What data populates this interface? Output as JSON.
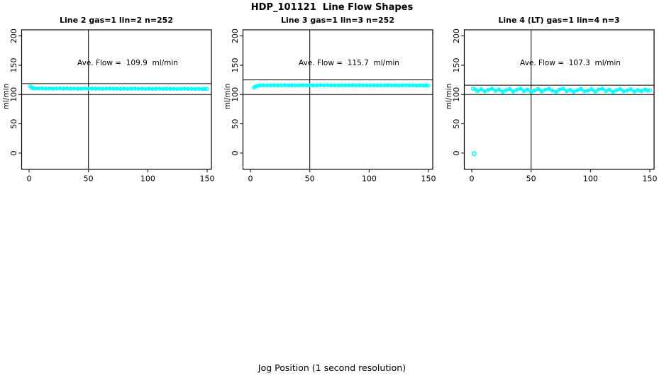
{
  "title": "HDP_101121  Line Flow Shapes",
  "xlabel": "Jog Position (1 second resolution)",
  "marker_color": "#00FFFF",
  "axis_color": "#000000",
  "background_color": "#FFFFFF",
  "chart_data": [
    {
      "type": "scatter",
      "title": "Line 2 gas=1 lin=2 n=252",
      "annotation": "Ave. Flow =  109.9  ml/min",
      "ave_flow_ml_min": 109.9,
      "n": 252,
      "ylabel": "ml/min",
      "xticks": [
        0,
        50,
        100,
        150
      ],
      "yticks": [
        0,
        50,
        100,
        150,
        200
      ],
      "xlim": [
        -6.3,
        153.6
      ],
      "ylim": [
        -27.4,
        210.5
      ],
      "grid": false,
      "vline_x": 50,
      "hlines": [
        118.7,
        100.0
      ],
      "points": [
        [
          1,
          113.8
        ],
        [
          2,
          112.0
        ],
        [
          3,
          111.0
        ],
        [
          5,
          110.4
        ],
        [
          8,
          110.3
        ],
        [
          11,
          110.5
        ],
        [
          14,
          110.2
        ],
        [
          17,
          110.4
        ],
        [
          20,
          110.1
        ],
        [
          23,
          110.3
        ],
        [
          26,
          110.5
        ],
        [
          29,
          110.2
        ],
        [
          32,
          110.4
        ],
        [
          35,
          110.1
        ],
        [
          38,
          110.3
        ],
        [
          41,
          110.0
        ],
        [
          44,
          110.2
        ],
        [
          47,
          110.4
        ],
        [
          50,
          110.1
        ],
        [
          53,
          110.3
        ],
        [
          56,
          110.0
        ],
        [
          59,
          110.2
        ],
        [
          62,
          109.9
        ],
        [
          65,
          110.1
        ],
        [
          68,
          110.3
        ],
        [
          71,
          110.0
        ],
        [
          74,
          110.2
        ],
        [
          77,
          109.9
        ],
        [
          80,
          110.1
        ],
        [
          83,
          109.8
        ],
        [
          86,
          110.0
        ],
        [
          89,
          110.2
        ],
        [
          92,
          109.9
        ],
        [
          95,
          110.1
        ],
        [
          98,
          109.8
        ],
        [
          101,
          110.0
        ],
        [
          104,
          109.7
        ],
        [
          107,
          109.9
        ],
        [
          110,
          110.1
        ],
        [
          113,
          109.8
        ],
        [
          116,
          110.0
        ],
        [
          119,
          109.7
        ],
        [
          122,
          109.9
        ],
        [
          125,
          109.6
        ],
        [
          128,
          109.8
        ],
        [
          131,
          110.0
        ],
        [
          134,
          109.7
        ],
        [
          137,
          109.9
        ],
        [
          140,
          109.6
        ],
        [
          143,
          109.8
        ],
        [
          146,
          109.5
        ],
        [
          148,
          109.7
        ],
        [
          150,
          109.6
        ]
      ],
      "outliers": []
    },
    {
      "type": "scatter",
      "title": "Line 3 gas=1 lin=3 n=252",
      "annotation": "Ave. Flow =  115.7  ml/min",
      "ave_flow_ml_min": 115.7,
      "n": 252,
      "ylabel": "ml/min",
      "xticks": [
        0,
        50,
        100,
        150
      ],
      "yticks": [
        0,
        50,
        100,
        150,
        200
      ],
      "xlim": [
        -6.3,
        153.6
      ],
      "ylim": [
        -27.4,
        210.5
      ],
      "grid": false,
      "vline_x": 50,
      "hlines": [
        125.0,
        100.0
      ],
      "points": [
        [
          3,
          111.8
        ],
        [
          4,
          113.2
        ],
        [
          5,
          114.2
        ],
        [
          6,
          114.9
        ],
        [
          8,
          115.4
        ],
        [
          11,
          115.6
        ],
        [
          14,
          115.8
        ],
        [
          17,
          115.7
        ],
        [
          20,
          115.9
        ],
        [
          23,
          115.6
        ],
        [
          26,
          115.8
        ],
        [
          29,
          116.0
        ],
        [
          32,
          115.7
        ],
        [
          35,
          115.9
        ],
        [
          38,
          115.6
        ],
        [
          41,
          115.8
        ],
        [
          44,
          116.0
        ],
        [
          47,
          115.7
        ],
        [
          50,
          115.9
        ],
        [
          53,
          115.6
        ],
        [
          56,
          115.8
        ],
        [
          59,
          116.0
        ],
        [
          62,
          115.7
        ],
        [
          65,
          115.9
        ],
        [
          68,
          115.6
        ],
        [
          71,
          115.8
        ],
        [
          74,
          115.7
        ],
        [
          77,
          115.9
        ],
        [
          80,
          115.6
        ],
        [
          83,
          115.8
        ],
        [
          86,
          116.0
        ],
        [
          89,
          115.7
        ],
        [
          92,
          115.9
        ],
        [
          95,
          115.6
        ],
        [
          98,
          115.8
        ],
        [
          101,
          115.7
        ],
        [
          104,
          115.9
        ],
        [
          107,
          115.6
        ],
        [
          110,
          115.8
        ],
        [
          113,
          115.7
        ],
        [
          116,
          115.9
        ],
        [
          119,
          115.6
        ],
        [
          122,
          115.8
        ],
        [
          125,
          115.5
        ],
        [
          128,
          115.7
        ],
        [
          131,
          115.9
        ],
        [
          134,
          115.6
        ],
        [
          137,
          115.8
        ],
        [
          140,
          115.5
        ],
        [
          143,
          115.7
        ],
        [
          146,
          115.4
        ],
        [
          148,
          115.6
        ],
        [
          150,
          115.5
        ]
      ],
      "outliers": []
    },
    {
      "type": "scatter",
      "title": "Line 4 (LT) gas=1 lin=4 n=3",
      "annotation": "Ave. Flow =  107.3  ml/min",
      "ave_flow_ml_min": 107.3,
      "n": 3,
      "ylabel": "ml/min",
      "xticks": [
        0,
        50,
        100,
        150
      ],
      "yticks": [
        0,
        50,
        100,
        150,
        200
      ],
      "xlim": [
        -6.3,
        153.6
      ],
      "ylim": [
        -27.4,
        210.5
      ],
      "grid": false,
      "vline_x": 50,
      "hlines": [
        115.9,
        100.0
      ],
      "points": [
        [
          1,
          110.0
        ],
        [
          3,
          108.5
        ],
        [
          5,
          106.0
        ],
        [
          8,
          109.0
        ],
        [
          11,
          105.5
        ],
        [
          14,
          108.0
        ],
        [
          17,
          110.0
        ],
        [
          20,
          106.5
        ],
        [
          23,
          108.5
        ],
        [
          26,
          104.5
        ],
        [
          29,
          107.5
        ],
        [
          32,
          109.5
        ],
        [
          35,
          105.0
        ],
        [
          38,
          108.0
        ],
        [
          41,
          110.0
        ],
        [
          44,
          106.0
        ],
        [
          47,
          108.5
        ],
        [
          50,
          104.5
        ],
        [
          53,
          107.0
        ],
        [
          56,
          109.5
        ],
        [
          59,
          105.5
        ],
        [
          62,
          108.0
        ],
        [
          65,
          110.0
        ],
        [
          68,
          106.5
        ],
        [
          71,
          104.5
        ],
        [
          74,
          108.5
        ],
        [
          77,
          110.0
        ],
        [
          80,
          106.0
        ],
        [
          83,
          108.0
        ],
        [
          86,
          104.5
        ],
        [
          89,
          107.5
        ],
        [
          92,
          109.5
        ],
        [
          95,
          105.5
        ],
        [
          98,
          107.0
        ],
        [
          101,
          109.0
        ],
        [
          104,
          105.0
        ],
        [
          107,
          108.5
        ],
        [
          110,
          110.0
        ],
        [
          113,
          106.0
        ],
        [
          116,
          108.0
        ],
        [
          119,
          104.5
        ],
        [
          122,
          107.5
        ],
        [
          125,
          109.5
        ],
        [
          128,
          105.5
        ],
        [
          131,
          107.0
        ],
        [
          134,
          109.0
        ],
        [
          137,
          105.0
        ],
        [
          140,
          107.5
        ],
        [
          143,
          106.0
        ],
        [
          146,
          108.5
        ],
        [
          148,
          107.0
        ],
        [
          150,
          107.5
        ]
      ],
      "outliers": [
        [
          2,
          -1.0
        ]
      ]
    }
  ]
}
